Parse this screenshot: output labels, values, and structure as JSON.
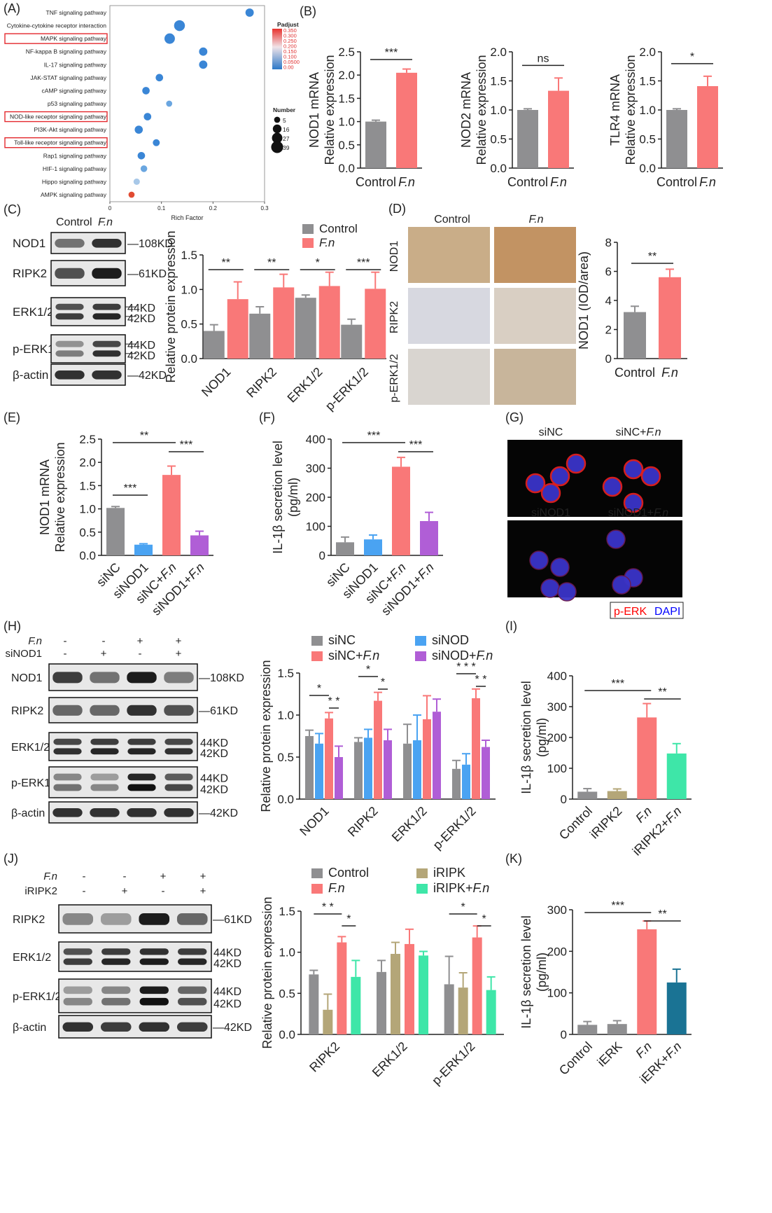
{
  "panels": {
    "A": "(A)",
    "B": "(B)",
    "C": "(C)",
    "D": "(D)",
    "E": "(E)",
    "F": "(F)",
    "G": "(G)",
    "H": "(H)",
    "I": "(I)",
    "J": "(J)",
    "K": "(K)"
  },
  "colors": {
    "control": "#8f8f91",
    "fn": "#f97878",
    "sinod": "#4aa3f2",
    "sinodfn": "#b05ed6",
    "iripk": "#b4a678",
    "iripkfn": "#3ee6a8",
    "ierkfn": "#1a7394",
    "pERK": "#ff0000",
    "DAPI": "#0000ff"
  },
  "chart_data": [
    {
      "id": "A",
      "type": "scatter",
      "categories": [
        "TNF signaling pathway",
        "Cytokine-cytokine receptor interaction",
        "MAPK signaling pathway",
        "NF-kappa B signaling pathway",
        "IL-17 signaling pathway",
        "JAK-STAT signaling pathway",
        "cAMP signaling pathway",
        "p53 signaling pathway",
        "NOD-like receptor signaling pathway",
        "PI3K-Akt signaling pathway",
        "Toll-like receptor signaling pathway",
        "Rap1 signaling pathway",
        "HIF-1 signaling pathway",
        "Hippo signaling pathway",
        "AMPK signaling pathway"
      ],
      "highlighted": [
        "MAPK signaling pathway",
        "NOD-like receptor signaling pathway",
        "Toll-like receptor signaling pathway"
      ],
      "rich_factor": [
        0.271,
        0.135,
        0.116,
        0.181,
        0.181,
        0.096,
        0.07,
        0.115,
        0.073,
        0.056,
        0.09,
        0.061,
        0.066,
        0.052,
        0.042
      ],
      "number": [
        14,
        30,
        27,
        14,
        14,
        10,
        10,
        5,
        10,
        13,
        8,
        10,
        7,
        6,
        5
      ],
      "padjust": [
        0.0,
        0.0,
        0.0,
        0.01,
        0.01,
        0.0,
        0.02,
        0.05,
        0.01,
        0.01,
        0.03,
        0.02,
        0.06,
        0.1,
        0.33
      ],
      "xlabel": "Rich Factor",
      "xlim": [
        0,
        0.3
      ],
      "xticks": [
        "0",
        "0.1",
        "0.2",
        "0.3"
      ],
      "color_legend_title": "Padjust",
      "color_ticks": [
        "0.350",
        "0.300",
        "0.250",
        "0.200",
        "0.150",
        "0.100",
        "0.0500",
        "0.00"
      ],
      "size_legend_title": "Number",
      "size_legend": [
        "5",
        "16",
        "27",
        "39"
      ]
    },
    {
      "id": "B1",
      "type": "bar",
      "categories": [
        "Control",
        "F.n"
      ],
      "values": [
        1.0,
        2.05
      ],
      "errors": [
        0.03,
        0.08
      ],
      "ylabel": [
        "NOD1 mRNA",
        "Relative expression"
      ],
      "ylim": [
        0,
        2.5
      ],
      "yticks": [
        "0.0",
        "0.5",
        "1.0",
        "1.5",
        "2.0",
        "2.5"
      ],
      "sig": [
        {
          "a": 0,
          "b": 1,
          "t": "***"
        }
      ]
    },
    {
      "id": "B2",
      "type": "bar",
      "categories": [
        "Control",
        "F.n"
      ],
      "values": [
        1.0,
        1.33
      ],
      "errors": [
        0.02,
        0.22
      ],
      "ylabel": [
        "NOD2 mRNA",
        "Relative expression"
      ],
      "ylim": [
        0,
        2.0
      ],
      "yticks": [
        "0.0",
        "0.5",
        "1.0",
        "1.5",
        "2.0"
      ],
      "sig": [
        {
          "a": 0,
          "b": 1,
          "t": "ns"
        }
      ]
    },
    {
      "id": "B3",
      "type": "bar",
      "categories": [
        "Control",
        "F.n"
      ],
      "values": [
        1.0,
        1.41
      ],
      "errors": [
        0.02,
        0.17
      ],
      "ylabel": [
        "TLR4 mRNA",
        "Relative expression"
      ],
      "ylim": [
        0,
        2.0
      ],
      "yticks": [
        "0.0",
        "0.5",
        "1.0",
        "1.5",
        "2.0"
      ],
      "sig": [
        {
          "a": 0,
          "b": 1,
          "t": "*"
        }
      ]
    },
    {
      "id": "C",
      "type": "bar",
      "categories": [
        "NOD1",
        "RIPK2",
        "ERK1/2",
        "p-ERK1/2"
      ],
      "series": [
        {
          "name": "Control",
          "values": [
            0.4,
            0.65,
            0.88,
            0.49
          ],
          "errors": [
            0.09,
            0.1,
            0.04,
            0.08
          ]
        },
        {
          "name": "F.n",
          "values": [
            0.86,
            1.03,
            1.05,
            1.01
          ],
          "errors": [
            0.25,
            0.19,
            0.2,
            0.24
          ]
        }
      ],
      "ylabel": "Relative protein expression",
      "ylim": [
        0,
        1.5
      ],
      "yticks": [
        "0.0",
        "0.5",
        "1.0",
        "1.5"
      ],
      "sig": [
        "**",
        "**",
        "*",
        "***"
      ]
    },
    {
      "id": "D",
      "type": "bar",
      "categories": [
        "Control",
        "F.n"
      ],
      "values": [
        3.2,
        5.6
      ],
      "errors": [
        0.4,
        0.55
      ],
      "ylabel": "NOD1 (IOD/area)",
      "ylim": [
        0,
        8
      ],
      "yticks": [
        "0",
        "2",
        "4",
        "6",
        "8"
      ],
      "sig": [
        {
          "a": 0,
          "b": 1,
          "t": "**"
        }
      ]
    },
    {
      "id": "E",
      "type": "bar",
      "categories": [
        "siNC",
        "siNOD1",
        "siNC+F.n",
        "siNOD1+F.n"
      ],
      "values": [
        1.02,
        0.23,
        1.73,
        0.43
      ],
      "errors": [
        0.03,
        0.02,
        0.19,
        0.09
      ],
      "ylabel": [
        "NOD1 mRNA",
        "Relative expression"
      ],
      "ylim": [
        0,
        2.5
      ],
      "yticks": [
        "0.0",
        "0.5",
        "1.0",
        "1.5",
        "2.0",
        "2.5"
      ],
      "sig": [
        {
          "a": 0,
          "b": 1,
          "t": "***"
        },
        {
          "a": 0,
          "b": 2,
          "t": "**"
        },
        {
          "a": 2,
          "b": 3,
          "t": "***"
        }
      ]
    },
    {
      "id": "F",
      "type": "bar",
      "categories": [
        "siNC",
        "siNOD1",
        "siNC+F.n",
        "siNOD1+F.n"
      ],
      "values": [
        45,
        55,
        305,
        118
      ],
      "errors": [
        18,
        15,
        32,
        30
      ],
      "ylabel": [
        "IL-1β secretion level",
        "(pg/ml)"
      ],
      "ylim": [
        0,
        400
      ],
      "yticks": [
        "0",
        "100",
        "200",
        "300",
        "400"
      ],
      "sig": [
        {
          "a": 0,
          "b": 2,
          "t": "***"
        },
        {
          "a": 2,
          "b": 3,
          "t": "***"
        }
      ]
    },
    {
      "id": "H",
      "type": "bar",
      "categories": [
        "NOD1",
        "RIPK2",
        "ERK1/2",
        "p-ERK1/2"
      ],
      "series": [
        {
          "name": "siNC",
          "values": [
            0.75,
            0.68,
            0.66,
            0.36
          ],
          "errors": [
            0.07,
            0.05,
            0.23,
            0.1
          ]
        },
        {
          "name": "siNOD",
          "values": [
            0.66,
            0.73,
            0.7,
            0.41
          ],
          "errors": [
            0.12,
            0.1,
            0.3,
            0.13
          ]
        },
        {
          "name": "siNC+F.n",
          "values": [
            0.96,
            1.17,
            0.95,
            1.2
          ],
          "errors": [
            0.07,
            0.1,
            0.28,
            0.11
          ]
        },
        {
          "name": "siNOD+F.n",
          "values": [
            0.5,
            0.7,
            1.04,
            0.62
          ],
          "errors": [
            0.13,
            0.13,
            0.15,
            0.08
          ]
        }
      ],
      "ylabel": "Relative protein expression",
      "ylim": [
        0,
        1.5
      ],
      "yticks": [
        "0.0",
        "0.5",
        "1.0",
        "1.5"
      ]
    },
    {
      "id": "I",
      "type": "bar",
      "categories": [
        "Control",
        "iRIPK2",
        "F.n",
        "iRIPK2+F.n"
      ],
      "values": [
        24,
        26,
        265,
        148
      ],
      "errors": [
        10,
        7,
        45,
        32
      ],
      "ylabel": [
        "IL-1β secretion level",
        "(pg/ml)"
      ],
      "ylim": [
        0,
        400
      ],
      "yticks": [
        "0",
        "100",
        "200",
        "300",
        "400"
      ],
      "sig": [
        {
          "a": 0,
          "b": 2,
          "t": "***"
        },
        {
          "a": 2,
          "b": 3,
          "t": "**"
        }
      ]
    },
    {
      "id": "J",
      "type": "bar",
      "categories": [
        "RIPK2",
        "ERK1/2",
        "p-ERK1/2"
      ],
      "series": [
        {
          "name": "Control",
          "values": [
            0.73,
            0.76,
            0.61
          ],
          "errors": [
            0.05,
            0.14,
            0.34
          ]
        },
        {
          "name": "iRIPK",
          "values": [
            0.3,
            0.98,
            0.57
          ],
          "errors": [
            0.19,
            0.14,
            0.18
          ]
        },
        {
          "name": "F.n",
          "values": [
            1.12,
            1.1,
            1.18
          ],
          "errors": [
            0.07,
            0.18,
            0.14
          ]
        },
        {
          "name": "iRIPK+F.n",
          "values": [
            0.7,
            0.96,
            0.54
          ],
          "errors": [
            0.2,
            0.05,
            0.16
          ]
        }
      ],
      "ylabel": "Relative protein expression",
      "ylim": [
        0,
        1.5
      ],
      "yticks": [
        "0.0",
        "0.5",
        "1.0",
        "1.5"
      ]
    },
    {
      "id": "K",
      "type": "bar",
      "categories": [
        "Control",
        "iERK",
        "F.n",
        "iERK+F.n"
      ],
      "values": [
        23,
        25,
        253,
        125
      ],
      "errors": [
        8,
        8,
        20,
        32
      ],
      "ylabel": [
        "IL-1β secretion level",
        "(pg/ml)"
      ],
      "ylim": [
        0,
        300
      ],
      "yticks": [
        "0",
        "100",
        "200",
        "300"
      ],
      "sig": [
        {
          "a": 0,
          "b": 2,
          "t": "***"
        },
        {
          "a": 2,
          "b": 3,
          "t": "**"
        }
      ]
    }
  ],
  "blots": {
    "C": {
      "header": [
        "Control",
        "F.n"
      ],
      "rows": [
        [
          "NOD1",
          "108KD"
        ],
        [
          "RIPK2",
          "61KD"
        ],
        [
          "ERK1/2",
          "44KD",
          "42KD"
        ],
        [
          "p-ERK1/2",
          "44KD",
          "42KD"
        ],
        [
          "β-actin",
          "42KD"
        ]
      ]
    },
    "H": {
      "treat": [
        "F.n",
        "siNOD1"
      ],
      "signs": [
        [
          "-",
          "-",
          "+",
          "+"
        ],
        [
          "-",
          "+",
          "-",
          "+"
        ]
      ],
      "rows": [
        [
          "NOD1",
          "108KD"
        ],
        [
          "RIPK2",
          "61KD"
        ],
        [
          "ERK1/2",
          "44KD",
          "42KD"
        ],
        [
          "p-ERK1/2",
          "44KD",
          "42KD"
        ],
        [
          "β-actin",
          "42KD"
        ]
      ]
    },
    "J": {
      "treat": [
        "F.n",
        "iRIPK2"
      ],
      "signs": [
        [
          "-",
          "-",
          "+",
          "+"
        ],
        [
          "-",
          "+",
          "-",
          "+"
        ]
      ],
      "rows": [
        [
          "RIPK2",
          "61KD"
        ],
        [
          "ERK1/2",
          "44KD",
          "42KD"
        ],
        [
          "p-ERK1/2",
          "44KD",
          "42KD"
        ],
        [
          "β-actin",
          "42KD"
        ]
      ]
    }
  },
  "ihc": {
    "cols": [
      "Control",
      "F.n"
    ],
    "rows": [
      "NOD1",
      "RIPK2",
      "p-ERK1/2"
    ]
  },
  "if": {
    "titles": [
      "siNC",
      "siNC+F.n",
      "siNOD1",
      "siNOD1+F.n"
    ],
    "legend": [
      "p-ERK",
      "DAPI"
    ]
  }
}
